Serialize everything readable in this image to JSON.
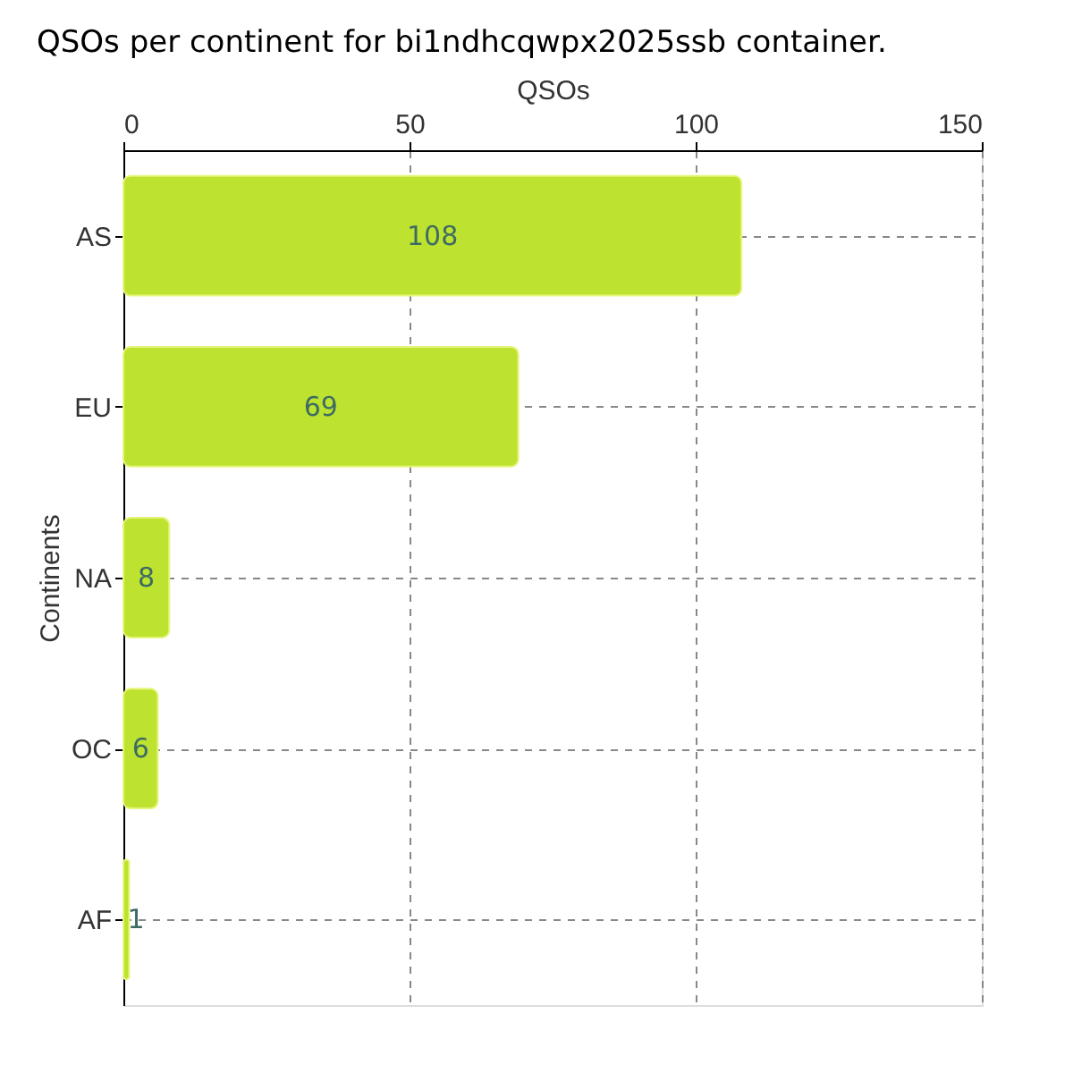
{
  "chart_data": {
    "type": "bar",
    "orientation": "horizontal",
    "title": "QSOs per continent for bi1ndhcqwpx2025ssb container.",
    "xlabel": "QSOs",
    "ylabel": "Continents",
    "categories": [
      "AS",
      "EU",
      "NA",
      "OC",
      "AF"
    ],
    "values": [
      108,
      69,
      8,
      6,
      1
    ],
    "color": "#bde22f",
    "data_labels": true,
    "xlim": [
      0,
      150
    ],
    "xticks": [
      0,
      50,
      100,
      150
    ],
    "grid": true
  }
}
